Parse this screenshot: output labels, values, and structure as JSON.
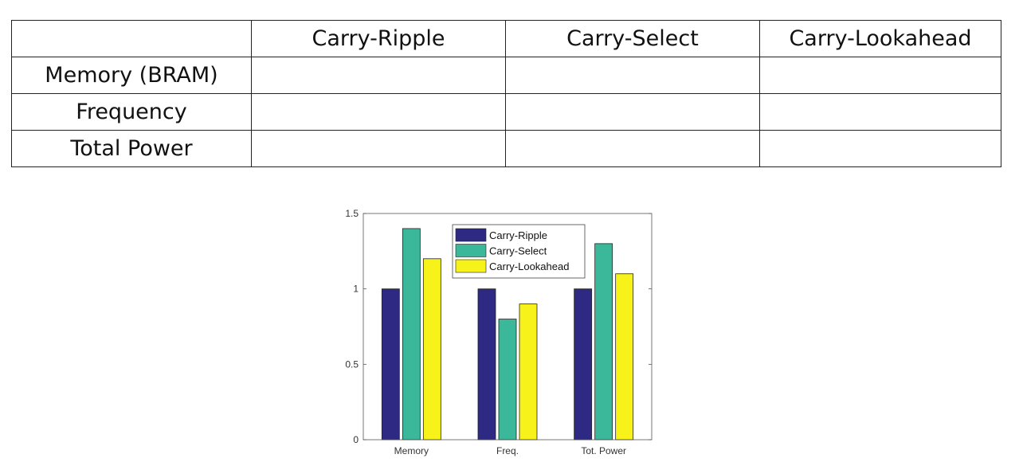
{
  "table": {
    "columns": [
      "",
      "Carry-Ripple",
      "Carry-Select",
      "Carry-Lookahead"
    ],
    "rows": [
      {
        "label": "Memory (BRAM)",
        "cells": [
          "",
          "",
          ""
        ]
      },
      {
        "label": "Frequency",
        "cells": [
          "",
          "",
          ""
        ]
      },
      {
        "label": "Total Power",
        "cells": [
          "",
          "",
          ""
        ]
      }
    ]
  },
  "chart_data": {
    "type": "bar",
    "categories": [
      "Memory",
      "Freq.",
      "Tot. Power"
    ],
    "series": [
      {
        "name": "Carry-Ripple",
        "values": [
          1.0,
          1.0,
          1.0
        ],
        "color": "#2E2A84"
      },
      {
        "name": "Carry-Select",
        "values": [
          1.4,
          0.8,
          1.3
        ],
        "color": "#3BB89A"
      },
      {
        "name": "Carry-Lookahead",
        "values": [
          1.2,
          0.9,
          1.1
        ],
        "color": "#F7F21A"
      }
    ],
    "yticks": [
      "0",
      "0.5",
      "1",
      "1.5"
    ],
    "ylim": [
      0,
      1.5
    ],
    "grid": false,
    "legend": "top-center"
  }
}
